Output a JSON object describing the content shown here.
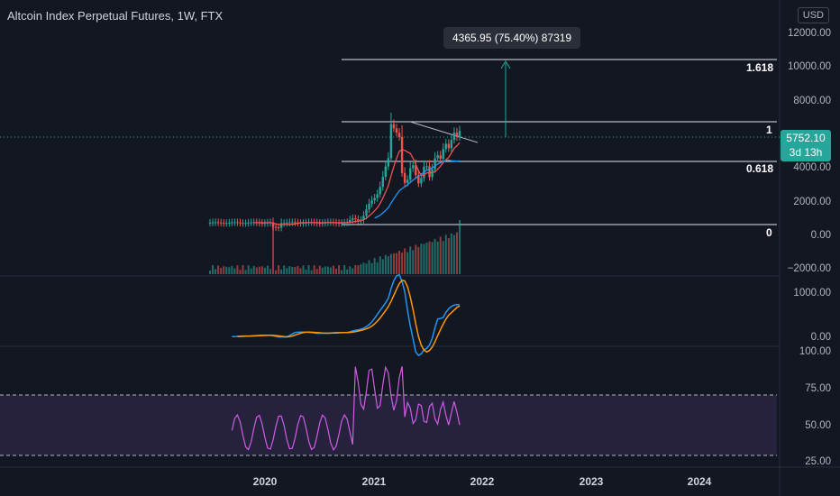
{
  "header": {
    "title": "Altcoin Index Perpetual Futures, 1W, FTX",
    "currency": "USD"
  },
  "price_axis": [
    "12000.00",
    "10000.00",
    "8000.00",
    "4000.00",
    "2000.00",
    "0.00",
    "−2000.00"
  ],
  "macd_axis": [
    "1000.00",
    "0.00"
  ],
  "rsi_axis": [
    "100.00",
    "75.00",
    "50.00",
    "25.00"
  ],
  "time_axis": [
    "2020",
    "2021",
    "2022",
    "2023",
    "2024"
  ],
  "fib_levels": [
    "1.618",
    "1",
    "0.618",
    "0"
  ],
  "tooltip": "4365.95 (75.40%) 87319",
  "last_price": {
    "value": "5752.10",
    "countdown": "3d 13h"
  },
  "colors": {
    "background": "#131722",
    "up": "#26a69a",
    "down": "#ef5350",
    "ma_fast": "#ef5350",
    "ma_slow": "#2196f3",
    "macd": "#2196f3",
    "signal": "#ff9800",
    "rsi": "#d05ce3"
  }
}
